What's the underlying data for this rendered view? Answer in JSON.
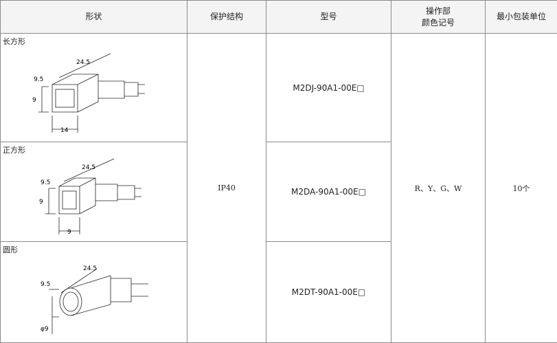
{
  "table": {
    "headers": [
      "形状",
      "保护结构",
      "型号",
      [
        "操作部",
        "颜色记号"
      ],
      "最小包装单位"
    ],
    "protection": "IP40",
    "color_codes": "R、Y、G、W",
    "min_pack": "10个",
    "rows": [
      {
        "shape": "长方形",
        "dims": [
          "24.5",
          "9.5",
          "9",
          "14"
        ],
        "model": "M2DJ-90A1-00E□"
      },
      {
        "shape": "正方形",
        "dims": [
          "24.5",
          "9.5",
          "9",
          "9"
        ],
        "model": "M2DA-90A1-00E□"
      },
      {
        "shape": "圆形",
        "dims": [
          "24.5",
          "9.5",
          "φ9"
        ],
        "model": "M2DT-90A1-00E□"
      }
    ]
  }
}
